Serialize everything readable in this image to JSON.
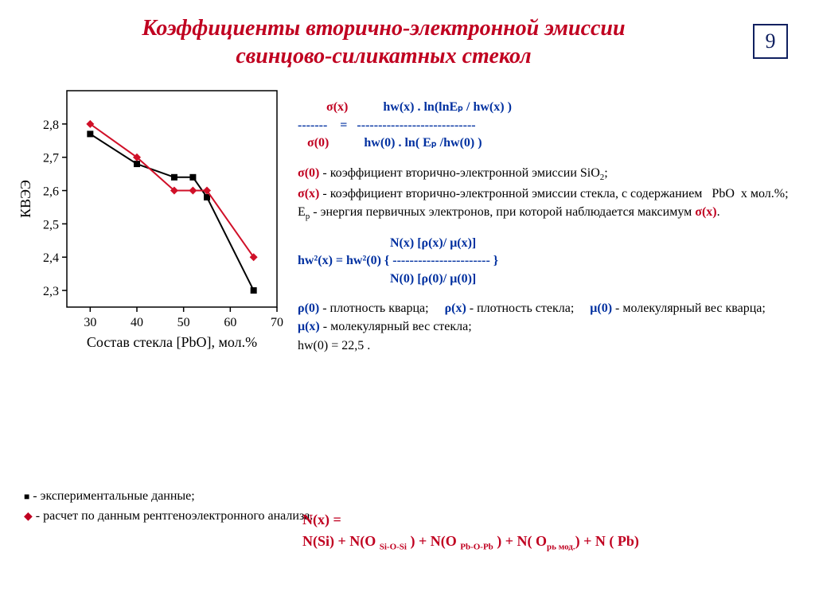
{
  "slide_number": "9",
  "title_line1": "Коэффициенты вторично-электронной эмиссии",
  "title_line2": "свинцово-силикатных стекол",
  "equation1": {
    "l_num": "σ(x)",
    "l_den": "σ(0)",
    "mid": "=",
    "r_num": "hw(x) . ln(lnEₚ / hw(x) )",
    "r_den": "hw(0) . ln( Eₚ /hw(0) )",
    "dash_l": "-------",
    "dash_r": "----------------------------"
  },
  "defs1": {
    "s0": "σ(0)  - коэффициент вторично-электронной эмиссии SiO₂;",
    "sx": "σ(x)  - коэффициент вторично-электронной эмиссии стекла, с содержанием   PbO  x мол.%;",
    "ep": "Eₚ - энергия первичных электронов, при которой наблюдается максимум σ(x)."
  },
  "equation2": {
    "top": "N(x) [ρ(x)/ μ(x)]",
    "main": "hw²(x) = hw²(0) { ----------------------- }",
    "bot": "N(0) [ρ(0)/ μ(0)]"
  },
  "defs2": {
    "line1": "ρ(0) - плотность кварца;     ρ(x) - плотность стекла;     μ(0) - молекулярный вес кварца;     μ(x) - молекулярный вес стекла;",
    "line2": "hw(0) = 22,5 ."
  },
  "nx_eq": {
    "l1": "N(x) =",
    "l2": "N(Si) + N(O Si-O-Si ) + N(O Pb-O-Pb ) + N( Oрь мод.) + N ( Pb)"
  },
  "legend": {
    "exp": "- экспериментальные данные;",
    "calc": "- расчет по данным рентгеноэлектронного анализа."
  },
  "chart": {
    "type": "line-scatter",
    "xlabel": "Состав стекла [PbO],  мол.%",
    "ylabel": "КВЭЭ",
    "xlim": [
      25,
      70
    ],
    "ylim": [
      2.25,
      2.9
    ],
    "xticks": [
      30,
      40,
      50,
      60,
      70
    ],
    "yticks": [
      2.3,
      2.4,
      2.5,
      2.6,
      2.7,
      2.8
    ],
    "ytick_labels": [
      "2,3",
      "2,4",
      "2,5",
      "2,6",
      "2,7",
      "2,8"
    ],
    "series": [
      {
        "name": "experimental",
        "marker": "square",
        "color": "#000000",
        "line_color": "#000000",
        "x": [
          30,
          40,
          48,
          52,
          55,
          65
        ],
        "y": [
          2.77,
          2.68,
          2.64,
          2.64,
          2.58,
          2.3
        ]
      },
      {
        "name": "calculated",
        "marker": "diamond",
        "color": "#d01028",
        "line_color": "#d01028",
        "x": [
          30,
          40,
          48,
          52,
          55,
          65
        ],
        "y": [
          2.8,
          2.7,
          2.6,
          2.6,
          2.6,
          2.4
        ]
      }
    ],
    "axis_color": "#000000",
    "background": "#ffffff",
    "tick_font_size": 16,
    "label_font_size": 18,
    "line_width": 2,
    "marker_size": 8
  }
}
